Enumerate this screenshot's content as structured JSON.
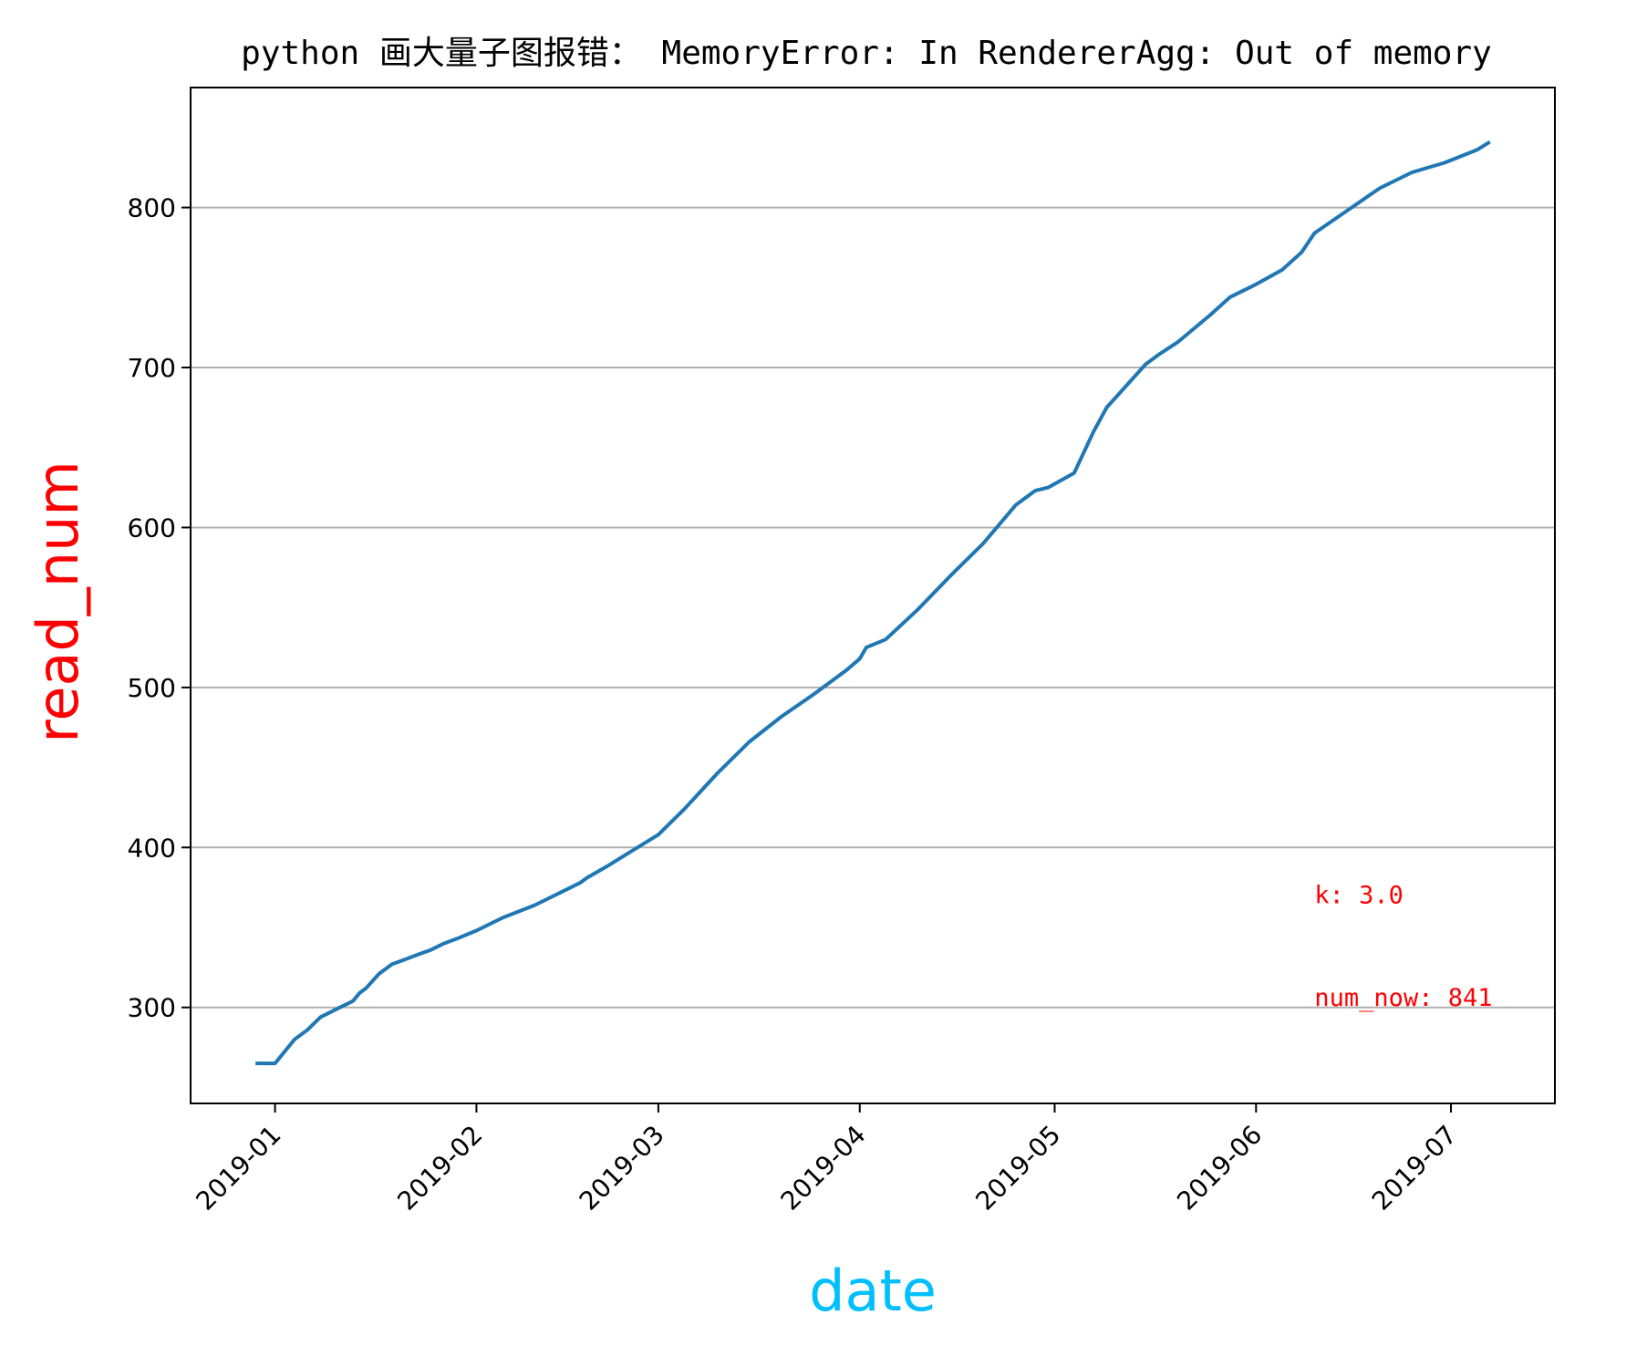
{
  "chart_data": {
    "type": "line",
    "title": "python 画大量子图报错： MemoryError: In RendererAgg: Out of memory",
    "xlabel": "date",
    "ylabel": "read_num",
    "xlabel_color": "#00bfff",
    "ylabel_color": "#ff0000",
    "line_color": "#1f77b4",
    "grid": "y-only",
    "ylim": [
      240,
      875
    ],
    "xlim": [
      "2018-12-19",
      "2019-07-17"
    ],
    "x_ticks": [
      "2019-01",
      "2019-02",
      "2019-03",
      "2019-04",
      "2019-05",
      "2019-06",
      "2019-07"
    ],
    "y_ticks": [
      300,
      400,
      500,
      600,
      700,
      800
    ],
    "annotations": [
      {
        "text": "k: 3.0",
        "x": "2019-06-10",
        "y": 365,
        "color": "#ff0000"
      },
      {
        "text": "num_now: 841",
        "x": "2019-06-10",
        "y": 301,
        "color": "#ff0000"
      }
    ],
    "series": [
      {
        "x": [
          "2018-12-29",
          "2019-01-01",
          "2019-01-02",
          "2019-01-04",
          "2019-01-06",
          "2019-01-08",
          "2019-01-09",
          "2019-01-11",
          "2019-01-13",
          "2019-01-14",
          "2019-01-15",
          "2019-01-17",
          "2019-01-19",
          "2019-01-21",
          "2019-01-23",
          "2019-01-25",
          "2019-01-27",
          "2019-01-29",
          "2019-02-01",
          "2019-02-05",
          "2019-02-10",
          "2019-02-15",
          "2019-02-17",
          "2019-02-18",
          "2019-02-21",
          "2019-02-25",
          "2019-03-01",
          "2019-03-05",
          "2019-03-10",
          "2019-03-15",
          "2019-03-20",
          "2019-03-25",
          "2019-03-30",
          "2019-04-01",
          "2019-04-02",
          "2019-04-05",
          "2019-04-10",
          "2019-04-15",
          "2019-04-20",
          "2019-04-25",
          "2019-04-28",
          "2019-04-30",
          "2019-05-04",
          "2019-05-07",
          "2019-05-09",
          "2019-05-15",
          "2019-05-17",
          "2019-05-20",
          "2019-05-25",
          "2019-05-28",
          "2019-06-01",
          "2019-06-05",
          "2019-06-08",
          "2019-06-10",
          "2019-06-15",
          "2019-06-20",
          "2019-06-25",
          "2019-06-30",
          "2019-07-05",
          "2019-07-07"
        ],
        "y": [
          265,
          265,
          270,
          280,
          286,
          294,
          296,
          300,
          304,
          309,
          312,
          321,
          327,
          330,
          333,
          336,
          340,
          343,
          348,
          356,
          364,
          374,
          378,
          381,
          388,
          398,
          408,
          424,
          446,
          466,
          482,
          496,
          511,
          518,
          525,
          530,
          549,
          570,
          590,
          614,
          623,
          625,
          634,
          660,
          675,
          702,
          708,
          716,
          733,
          744,
          752,
          761,
          772,
          784,
          798,
          812,
          822,
          828,
          836,
          841
        ]
      }
    ]
  }
}
